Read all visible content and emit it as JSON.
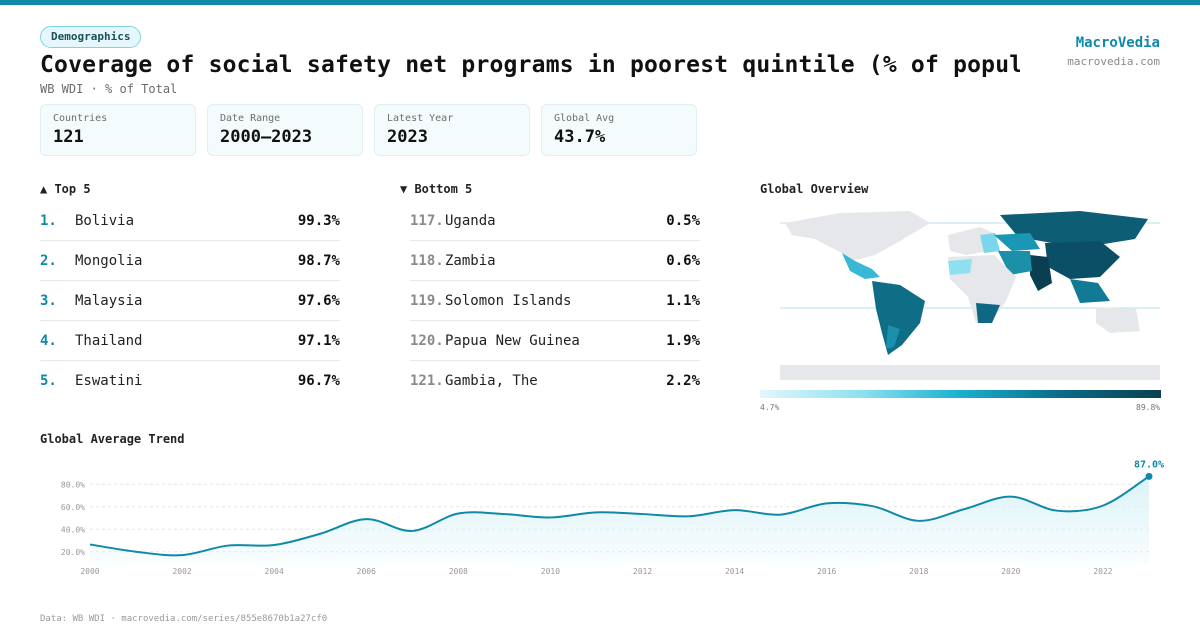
{
  "header": {
    "badge": "Demographics",
    "title": "Coverage of social safety net programs in poorest quintile (% of populat…",
    "subtitle": "WB WDI · % of Total",
    "brand": "MacroVedia",
    "brand_url": "macrovedia.com"
  },
  "stats": [
    {
      "label": "Countries",
      "value": "121"
    },
    {
      "label": "Date Range",
      "value": "2000–2023"
    },
    {
      "label": "Latest Year",
      "value": "2023"
    },
    {
      "label": "Global Avg",
      "value": "43.7%"
    }
  ],
  "top5": {
    "heading": "▲ Top 5",
    "items": [
      {
        "rank": "1.",
        "country": "Bolivia",
        "value": "99.3%"
      },
      {
        "rank": "2.",
        "country": "Mongolia",
        "value": "98.7%"
      },
      {
        "rank": "3.",
        "country": "Malaysia",
        "value": "97.6%"
      },
      {
        "rank": "4.",
        "country": "Thailand",
        "value": "97.1%"
      },
      {
        "rank": "5.",
        "country": "Eswatini",
        "value": "96.7%"
      }
    ]
  },
  "bottom5": {
    "heading": "▼ Bottom 5",
    "items": [
      {
        "rank": "117.",
        "country": "Uganda",
        "value": "0.5%"
      },
      {
        "rank": "118.",
        "country": "Zambia",
        "value": "0.6%"
      },
      {
        "rank": "119.",
        "country": "Solomon Islands",
        "value": "1.1%"
      },
      {
        "rank": "120.",
        "country": "Papua New Guinea",
        "value": "1.9%"
      },
      {
        "rank": "121.",
        "country": "Gambia, The",
        "value": "2.2%"
      }
    ]
  },
  "map": {
    "heading": "Global Overview",
    "legend_min": "4.7%",
    "legend_max": "89.8%"
  },
  "colors": {
    "accent": "#0e8aa8",
    "area_fill": "#d9f2f7"
  },
  "footer": "Data: WB WDI · macrovedia.com/series/855e8670b1a27cf0",
  "chart_data": {
    "type": "area",
    "title": "Global Average Trend",
    "x": [
      2000,
      2001,
      2002,
      2003,
      2004,
      2005,
      2006,
      2007,
      2008,
      2009,
      2010,
      2011,
      2012,
      2013,
      2014,
      2015,
      2016,
      2017,
      2018,
      2019,
      2020,
      2021,
      2022,
      2023
    ],
    "values": [
      26.5,
      20.0,
      17.0,
      25.5,
      26.0,
      36.0,
      49.0,
      38.5,
      54.0,
      53.5,
      50.5,
      55.0,
      53.5,
      51.5,
      57.0,
      53.0,
      63.0,
      60.5,
      47.5,
      58.0,
      69.0,
      56.5,
      61.0,
      87.0
    ],
    "xticks": [
      "2000",
      "2002",
      "2004",
      "2006",
      "2008",
      "2010",
      "2012",
      "2014",
      "2016",
      "2018",
      "2020",
      "2022"
    ],
    "yticks": [
      "20.0%",
      "40.0%",
      "60.0%",
      "80.0%"
    ],
    "ylim": [
      10,
      90
    ],
    "last_label": "87.0%",
    "grid": true
  }
}
